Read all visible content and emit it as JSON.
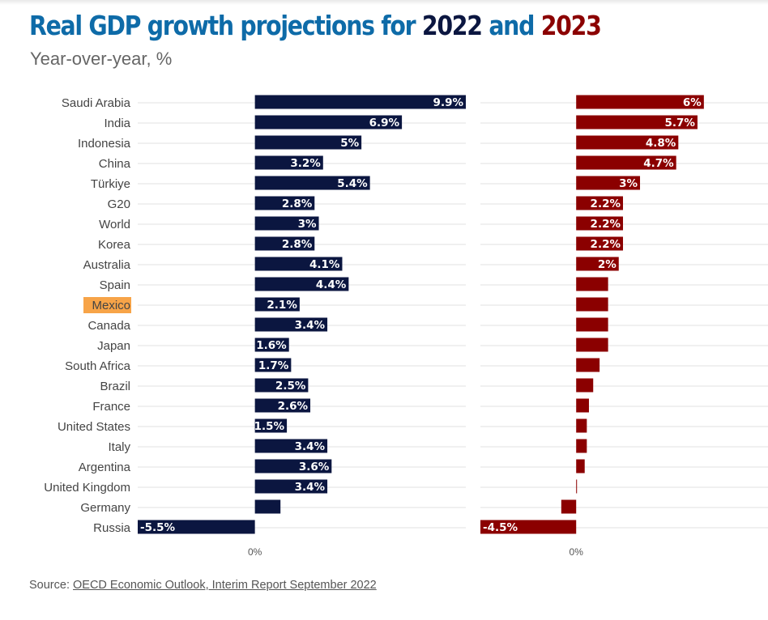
{
  "title": {
    "prefix": "Real GDP growth projections for ",
    "year1": "2022",
    "middle": " and ",
    "year2": "2023"
  },
  "subtitle": "Year-over-year, %",
  "source": {
    "label": "Source: ",
    "link_text": "OECD Economic Outlook, Interim Report September 2022"
  },
  "colors": {
    "title": "#0e6ba8",
    "series_2022": "#0b1640",
    "series_2023": "#8b0000",
    "highlight": "#f7a448",
    "grid": "#e2e2e2"
  },
  "chart_data": [
    {
      "type": "bar",
      "orientation": "horizontal",
      "title": "2022",
      "categories": [
        "Saudi Arabia",
        "India",
        "Indonesia",
        "China",
        "Türkiye",
        "G20",
        "World",
        "Korea",
        "Australia",
        "Spain",
        "Mexico",
        "Canada",
        "Japan",
        "South Africa",
        "Brazil",
        "France",
        "United States",
        "Italy",
        "Argentina",
        "United Kingdom",
        "Germany",
        "Russia"
      ],
      "highlight_category": "Mexico",
      "values": [
        9.9,
        6.9,
        5,
        3.2,
        5.4,
        2.8,
        3,
        2.8,
        4.1,
        4.4,
        2.1,
        3.4,
        1.6,
        1.7,
        2.5,
        2.6,
        1.5,
        3.4,
        3.6,
        3.4,
        1.2,
        -5.5
      ],
      "value_labels": [
        "9.9%",
        "6.9%",
        "5%",
        "3.2%",
        "5.4%",
        "2.8%",
        "3%",
        "2.8%",
        "4.1%",
        "4.4%",
        "2.1%",
        "3.4%",
        "1.6%",
        "1.7%",
        "2.5%",
        "2.6%",
        "1.5%",
        "3.4%",
        "3.6%",
        "3.4%",
        "",
        "-5.5%"
      ],
      "xlim": [
        -5.5,
        9.9
      ],
      "xticks": [
        "0%"
      ]
    },
    {
      "type": "bar",
      "orientation": "horizontal",
      "title": "2023",
      "categories": [
        "Saudi Arabia",
        "India",
        "Indonesia",
        "China",
        "Türkiye",
        "G20",
        "World",
        "Korea",
        "Australia",
        "Spain",
        "Mexico",
        "Canada",
        "Japan",
        "South Africa",
        "Brazil",
        "France",
        "United States",
        "Italy",
        "Argentina",
        "United Kingdom",
        "Germany",
        "Russia"
      ],
      "values": [
        6,
        5.7,
        4.8,
        4.7,
        3,
        2.2,
        2.2,
        2.2,
        2,
        1.5,
        1.5,
        1.5,
        1.5,
        1.1,
        0.8,
        0.6,
        0.5,
        0.5,
        0.4,
        0,
        -0.7,
        -4.5
      ],
      "value_labels": [
        "6%",
        "5.7%",
        "4.8%",
        "4.7%",
        "3%",
        "2.2%",
        "2.2%",
        "2.2%",
        "2%",
        "",
        "",
        "",
        "",
        "",
        "",
        "",
        "",
        "",
        "",
        "",
        "",
        "-4.5%"
      ],
      "xlim": [
        -4.5,
        8.1
      ],
      "xticks": [
        "0%"
      ]
    }
  ]
}
